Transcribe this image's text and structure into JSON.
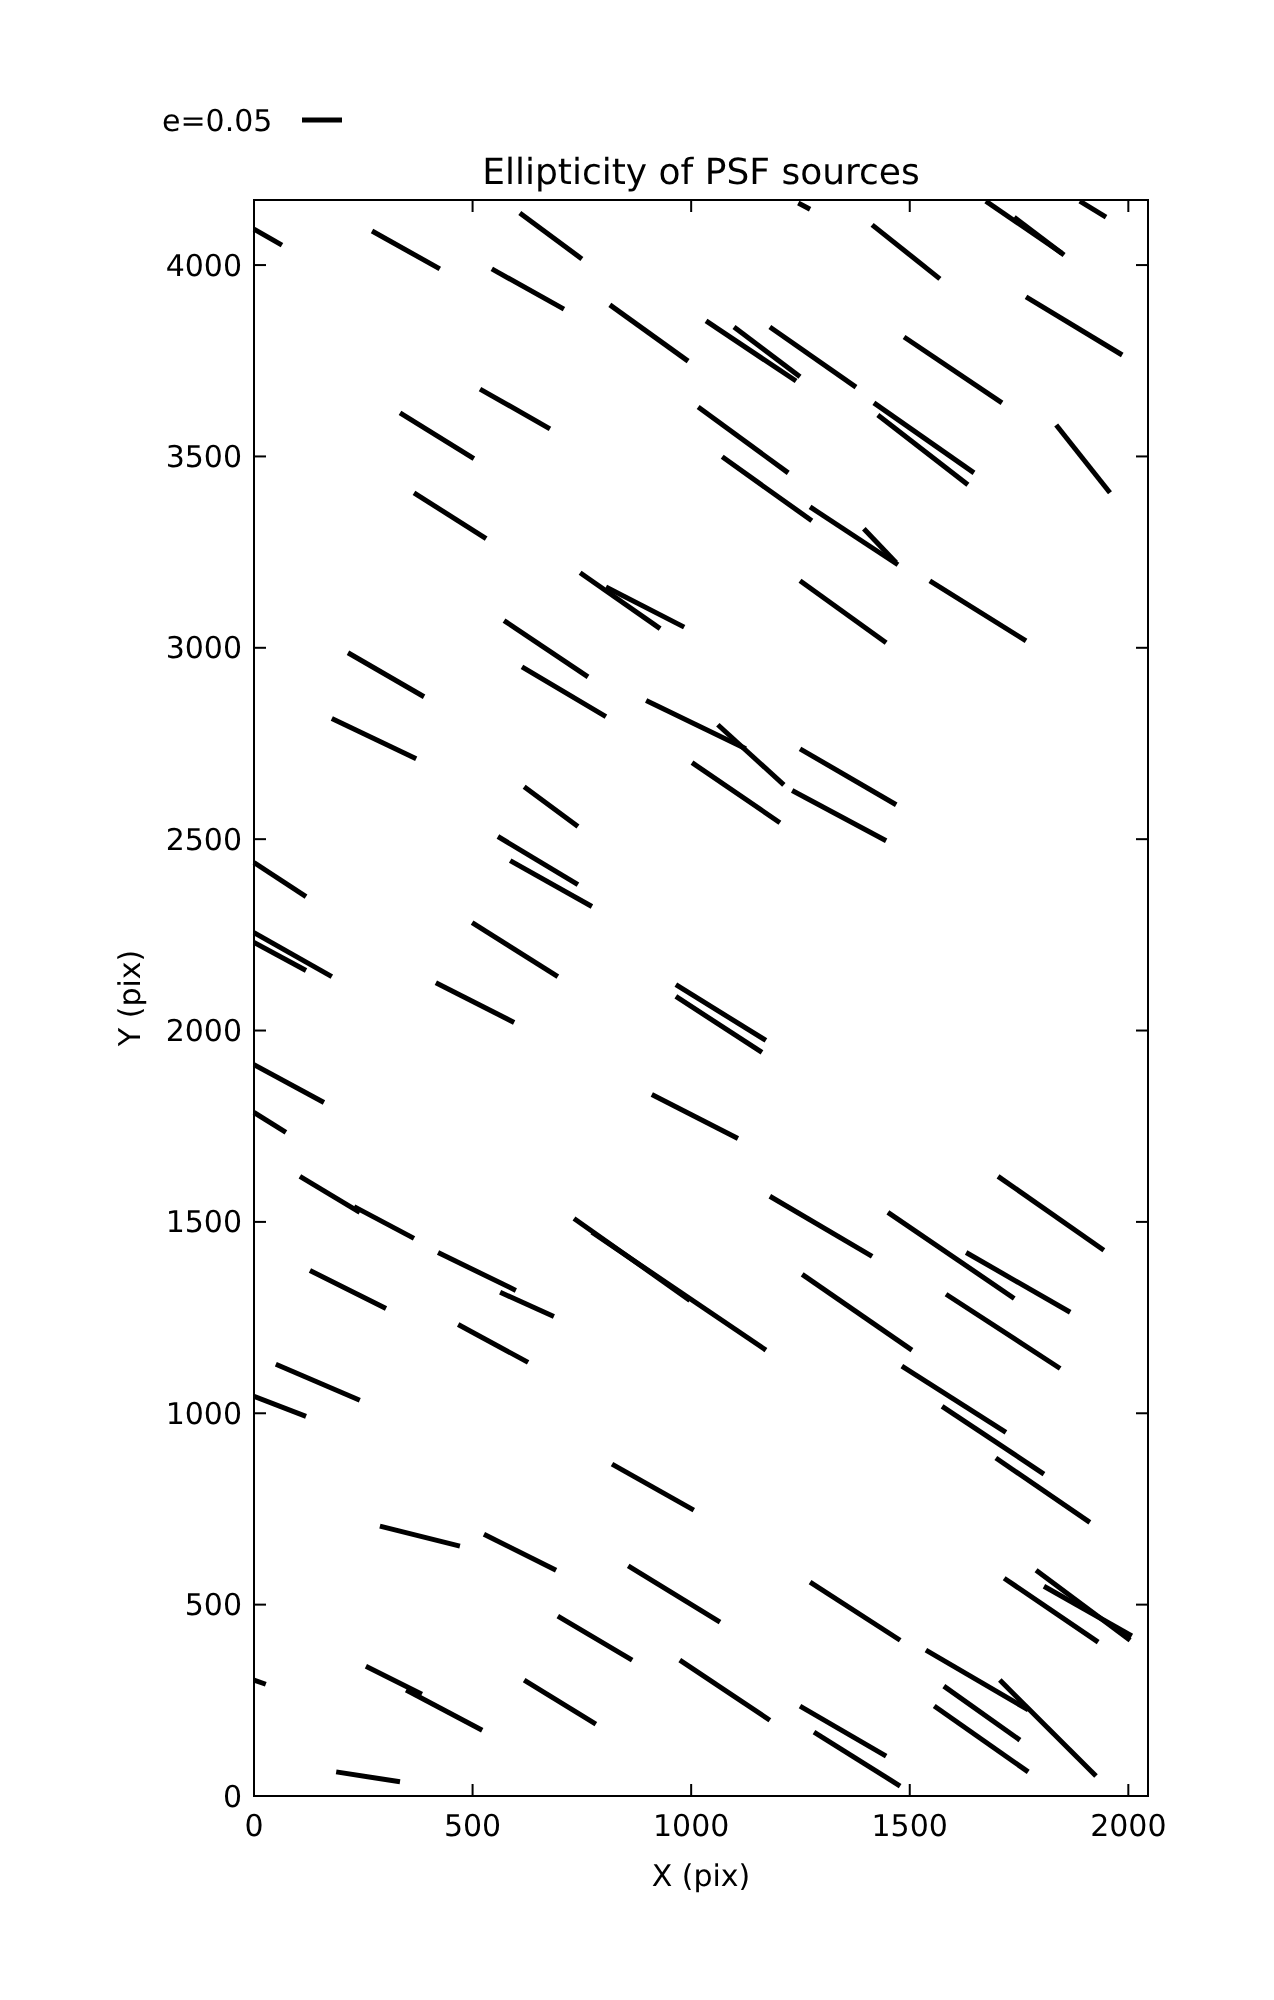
{
  "chart_data": {
    "type": "line",
    "title": "Ellipticity of PSF sources",
    "xlabel": "X (pix)",
    "ylabel": "Y (pix)",
    "annotations": [
      "e=0.05"
    ],
    "xlim": [
      0,
      2045
    ],
    "ylim": [
      0,
      4170
    ],
    "xticks": [
      0,
      500,
      1000,
      1500,
      2000
    ],
    "yticks": [
      0,
      500,
      1000,
      1500,
      2000,
      2500,
      3000,
      3500,
      4000
    ],
    "grid": false,
    "marker": "none",
    "line_style": "solid",
    "series": [
      {
        "color": "#000000",
        "x": [
          0,
          64
        ],
        "values": [
          4094,
          4052
        ]
      },
      {
        "color": "#000000",
        "x": [
          270,
          425
        ],
        "values": [
          4089,
          3990
        ]
      },
      {
        "color": "#000000",
        "x": [
          608,
          750
        ],
        "values": [
          4136,
          4016
        ]
      },
      {
        "color": "#000000",
        "x": [
          544,
          709
        ],
        "values": [
          3990,
          3885
        ]
      },
      {
        "color": "#000000",
        "x": [
          814,
          993
        ],
        "values": [
          3896,
          3749
        ]
      },
      {
        "color": "#000000",
        "x": [
          1034,
          1240
        ],
        "values": [
          3854,
          3697
        ]
      },
      {
        "color": "#000000",
        "x": [
          1098,
          1249
        ],
        "values": [
          3838,
          3708
        ]
      },
      {
        "color": "#000000",
        "x": [
          1180,
          1377
        ],
        "values": [
          3838,
          3681
        ]
      },
      {
        "color": "#000000",
        "x": [
          1414,
          1569
        ],
        "values": [
          4105,
          3964
        ]
      },
      {
        "color": "#000000",
        "x": [
          1487,
          1711
        ],
        "values": [
          3812,
          3640
        ]
      },
      {
        "color": "#000000",
        "x": [
          1766,
          1986
        ],
        "values": [
          3917,
          3765
        ]
      },
      {
        "color": "#000000",
        "x": [
          1835,
          1958
        ],
        "values": [
          3582,
          3405
        ]
      },
      {
        "color": "#000000",
        "x": [
          1245,
          1272
        ],
        "values": [
          4162,
          4146
        ]
      },
      {
        "color": "#000000",
        "x": [
          1674,
          1848
        ],
        "values": [
          4167,
          4031
        ]
      },
      {
        "color": "#000000",
        "x": [
          1739,
          1853
        ],
        "values": [
          4125,
          4026
        ]
      },
      {
        "color": "#000000",
        "x": [
          1889,
          1949
        ],
        "values": [
          4167,
          4125
        ]
      },
      {
        "color": "#000000",
        "x": [
          334,
          503
        ],
        "values": [
          3614,
          3494
        ]
      },
      {
        "color": "#000000",
        "x": [
          517,
          677
        ],
        "values": [
          3676,
          3572
        ]
      },
      {
        "color": "#000000",
        "x": [
          366,
          531
        ],
        "values": [
          3405,
          3285
        ]
      },
      {
        "color": "#000000",
        "x": [
          1016,
          1222
        ],
        "values": [
          3629,
          3457
        ]
      },
      {
        "color": "#000000",
        "x": [
          1071,
          1276
        ],
        "values": [
          3499,
          3332
        ]
      },
      {
        "color": "#000000",
        "x": [
          1418,
          1647
        ],
        "values": [
          3640,
          3457
        ]
      },
      {
        "color": "#000000",
        "x": [
          1427,
          1633
        ],
        "values": [
          3608,
          3426
        ]
      },
      {
        "color": "#000000",
        "x": [
          746,
          929
        ],
        "values": [
          3196,
          3050
        ]
      },
      {
        "color": "#000000",
        "x": [
          805,
          984
        ],
        "values": [
          3159,
          3054
        ]
      },
      {
        "color": "#000000",
        "x": [
          1272,
          1473
        ],
        "values": [
          3368,
          3217
        ]
      },
      {
        "color": "#000000",
        "x": [
          1395,
          1469
        ],
        "values": [
          3311,
          3222
        ]
      },
      {
        "color": "#000000",
        "x": [
          1249,
          1446
        ],
        "values": [
          3175,
          3013
        ]
      },
      {
        "color": "#000000",
        "x": [
          1546,
          1766
        ],
        "values": [
          3175,
          3018
        ]
      },
      {
        "color": "#000000",
        "x": [
          572,
          764
        ],
        "values": [
          3071,
          2924
        ]
      },
      {
        "color": "#000000",
        "x": [
          613,
          805
        ],
        "values": [
          2950,
          2820
        ]
      },
      {
        "color": "#000000",
        "x": [
          215,
          389
        ],
        "values": [
          2987,
          2872
        ]
      },
      {
        "color": "#000000",
        "x": [
          178,
          371
        ],
        "values": [
          2815,
          2710
        ]
      },
      {
        "color": "#000000",
        "x": [
          897,
          1125
        ],
        "values": [
          2862,
          2736
        ]
      },
      {
        "color": "#000000",
        "x": [
          1061,
          1212
        ],
        "values": [
          2799,
          2642
        ]
      },
      {
        "color": "#000000",
        "x": [
          1002,
          1203
        ],
        "values": [
          2700,
          2543
        ]
      },
      {
        "color": "#000000",
        "x": [
          1249,
          1469
        ],
        "values": [
          2736,
          2590
        ]
      },
      {
        "color": "#000000",
        "x": [
          1231,
          1446
        ],
        "values": [
          2627,
          2496
        ]
      },
      {
        "color": "#000000",
        "x": [
          618,
          741
        ],
        "values": [
          2637,
          2533
        ]
      },
      {
        "color": "#000000",
        "x": [
          558,
          741
        ],
        "values": [
          2507,
          2381
        ]
      },
      {
        "color": "#000000",
        "x": [
          586,
          773
        ],
        "values": [
          2444,
          2324
        ]
      },
      {
        "color": "#000000",
        "x": [
          0,
          119
        ],
        "values": [
          2439,
          2350
        ]
      },
      {
        "color": "#000000",
        "x": [
          0,
          178
        ],
        "values": [
          2256,
          2141
        ]
      },
      {
        "color": "#000000",
        "x": [
          0,
          119
        ],
        "values": [
          2230,
          2157
        ]
      },
      {
        "color": "#000000",
        "x": [
          499,
          695
        ],
        "values": [
          2282,
          2141
        ]
      },
      {
        "color": "#000000",
        "x": [
          416,
          595
        ],
        "values": [
          2125,
          2021
        ]
      },
      {
        "color": "#000000",
        "x": [
          965,
          1171
        ],
        "values": [
          2120,
          1974
        ]
      },
      {
        "color": "#000000",
        "x": [
          965,
          1162
        ],
        "values": [
          2089,
          1943
        ]
      },
      {
        "color": "#000000",
        "x": [
          0,
          160
        ],
        "values": [
          1911,
          1812
        ]
      },
      {
        "color": "#000000",
        "x": [
          910,
          1107
        ],
        "values": [
          1833,
          1718
        ]
      },
      {
        "color": "#000000",
        "x": [
          0,
          73
        ],
        "values": [
          1786,
          1734
        ]
      },
      {
        "color": "#000000",
        "x": [
          105,
          242
        ],
        "values": [
          1619,
          1525
        ]
      },
      {
        "color": "#000000",
        "x": [
          229,
          366
        ],
        "values": [
          1540,
          1457
        ]
      },
      {
        "color": "#000000",
        "x": [
          421,
          599
        ],
        "values": [
          1420,
          1321
        ]
      },
      {
        "color": "#000000",
        "x": [
          563,
          686
        ],
        "values": [
          1316,
          1253
        ]
      },
      {
        "color": "#000000",
        "x": [
          732,
          997
        ],
        "values": [
          1509,
          1295
        ]
      },
      {
        "color": "#000000",
        "x": [
          773,
          1171
        ],
        "values": [
          1473,
          1165
        ]
      },
      {
        "color": "#000000",
        "x": [
          128,
          302
        ],
        "values": [
          1373,
          1274
        ]
      },
      {
        "color": "#000000",
        "x": [
          467,
          627
        ],
        "values": [
          1232,
          1133
        ]
      },
      {
        "color": "#000000",
        "x": [
          1180,
          1414
        ],
        "values": [
          1567,
          1410
        ]
      },
      {
        "color": "#000000",
        "x": [
          1254,
          1505
        ],
        "values": [
          1363,
          1165
        ]
      },
      {
        "color": "#000000",
        "x": [
          1450,
          1739
        ],
        "values": [
          1525,
          1300
        ]
      },
      {
        "color": "#000000",
        "x": [
          1629,
          1867
        ],
        "values": [
          1420,
          1264
        ]
      },
      {
        "color": "#000000",
        "x": [
          1583,
          1844
        ],
        "values": [
          1311,
          1117
        ]
      },
      {
        "color": "#000000",
        "x": [
          1702,
          1944
        ],
        "values": [
          1619,
          1426
        ]
      },
      {
        "color": "#000000",
        "x": [
          1482,
          1720
        ],
        "values": [
          1123,
          950
        ]
      },
      {
        "color": "#000000",
        "x": [
          1574,
          1807
        ],
        "values": [
          1018,
          841
        ]
      },
      {
        "color": "#000000",
        "x": [
          1697,
          1912
        ],
        "values": [
          883,
          715
        ]
      },
      {
        "color": "#000000",
        "x": [
          50,
          242
        ],
        "values": [
          1128,
          1034
        ]
      },
      {
        "color": "#000000",
        "x": [
          0,
          119
        ],
        "values": [
          1044,
          992
        ]
      },
      {
        "color": "#000000",
        "x": [
          819,
          1006
        ],
        "values": [
          867,
          747
        ]
      },
      {
        "color": "#000000",
        "x": [
          288,
          471
        ],
        "values": [
          705,
          653
        ]
      },
      {
        "color": "#000000",
        "x": [
          526,
          691
        ],
        "values": [
          684,
          590
        ]
      },
      {
        "color": "#000000",
        "x": [
          695,
          865
        ],
        "values": [
          470,
          355
        ]
      },
      {
        "color": "#000000",
        "x": [
          856,
          1066
        ],
        "values": [
          601,
          454
        ]
      },
      {
        "color": "#000000",
        "x": [
          1272,
          1478
        ],
        "values": [
          559,
          407
        ]
      },
      {
        "color": "#000000",
        "x": [
          1716,
          1931
        ],
        "values": [
          569,
          402
        ]
      },
      {
        "color": "#000000",
        "x": [
          1789,
          2004
        ],
        "values": [
          590,
          407
        ]
      },
      {
        "color": "#000000",
        "x": [
          1807,
          2008
        ],
        "values": [
          548,
          418
        ]
      },
      {
        "color": "#000000",
        "x": [
          0,
          27
        ],
        "values": [
          303,
          292
        ]
      },
      {
        "color": "#000000",
        "x": [
          256,
          384
        ],
        "values": [
          339,
          266
        ]
      },
      {
        "color": "#000000",
        "x": [
          348,
          522
        ],
        "values": [
          277,
          172
        ]
      },
      {
        "color": "#000000",
        "x": [
          618,
          782
        ],
        "values": [
          303,
          188
        ]
      },
      {
        "color": "#000000",
        "x": [
          974,
          1180
        ],
        "values": [
          355,
          198
        ]
      },
      {
        "color": "#000000",
        "x": [
          1249,
          1446
        ],
        "values": [
          235,
          104
        ]
      },
      {
        "color": "#000000",
        "x": [
          1281,
          1478
        ],
        "values": [
          167,
          26
        ]
      },
      {
        "color": "#000000",
        "x": [
          1537,
          1771
        ],
        "values": [
          381,
          225
        ]
      },
      {
        "color": "#000000",
        "x": [
          1578,
          1752
        ],
        "values": [
          287,
          146
        ]
      },
      {
        "color": "#000000",
        "x": [
          1556,
          1771
        ],
        "values": [
          235,
          63
        ]
      },
      {
        "color": "#000000",
        "x": [
          1706,
          1926
        ],
        "values": [
          303,
          52
        ]
      },
      {
        "color": "#000000",
        "x": [
          188,
          334
        ],
        "values": [
          63,
          37
        ]
      }
    ]
  }
}
